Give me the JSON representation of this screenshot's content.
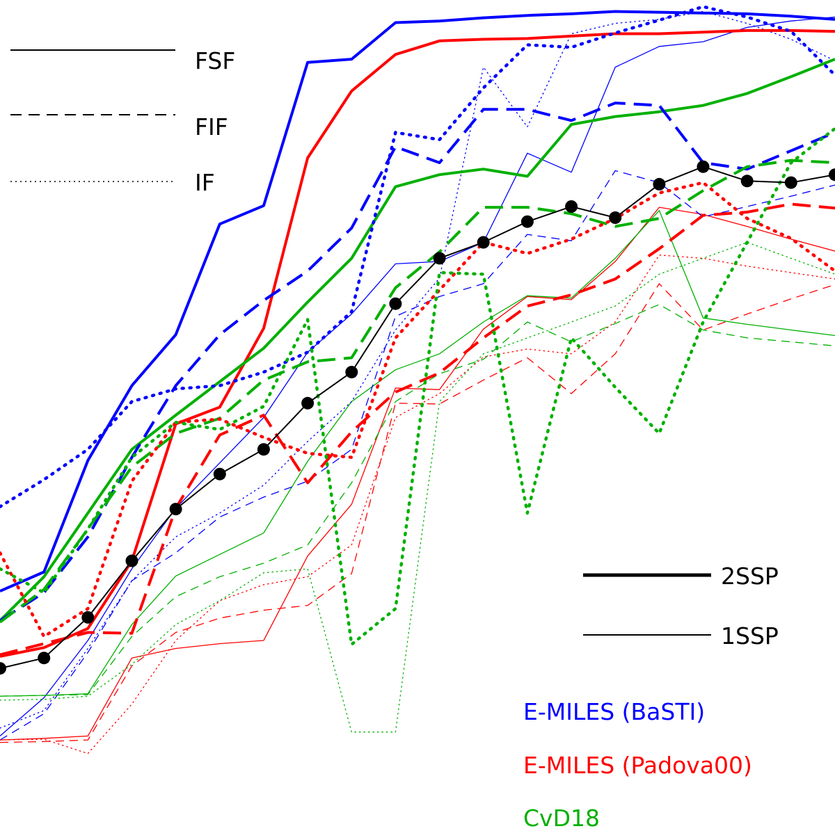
{
  "chart_data": {
    "type": "line",
    "title": "",
    "xlabel": "",
    "ylabel": "",
    "xlim": [
      0,
      19
    ],
    "ylim": [
      0,
      1
    ],
    "axes_visible": false,
    "colors": {
      "basti": "#0000ff",
      "padova": "#ff0000",
      "cvd18": "#00b000",
      "reference": "#000000"
    },
    "style_legend": [
      {
        "label": "FSF",
        "dash": "solid"
      },
      {
        "label": "FIF",
        "dash": "dashed"
      },
      {
        "label": "IF",
        "dash": "dotted"
      }
    ],
    "weight_legend": [
      {
        "label": "2SSP",
        "weight": "thick"
      },
      {
        "label": "1SSP",
        "weight": "thin"
      }
    ],
    "model_legend": [
      {
        "label": "E-MILES (BaSTI)",
        "color": "#0000ff"
      },
      {
        "label": "E-MILES (Padova00)",
        "color": "#ff0000"
      },
      {
        "label": "CvD18",
        "color": "#00b000"
      }
    ],
    "reference": {
      "name": "reference (black dots)",
      "x": [
        0,
        1,
        2,
        3,
        4,
        5,
        6,
        7,
        8,
        9,
        10,
        11,
        12,
        13,
        14,
        15,
        16,
        17,
        18,
        19
      ],
      "y": [
        0.165,
        0.178,
        0.229,
        0.3,
        0.365,
        0.409,
        0.44,
        0.498,
        0.537,
        0.623,
        0.68,
        0.7,
        0.726,
        0.745,
        0.731,
        0.773,
        0.795,
        0.777,
        0.775,
        0.785
      ]
    },
    "series": [
      {
        "name": "E-MILES (BaSTI) FSF 2SSP",
        "model": "basti",
        "style": "solid",
        "weight": "thick",
        "x": [
          0,
          1,
          2,
          3,
          4,
          5,
          6,
          7,
          8,
          9,
          10,
          11,
          12,
          13,
          14,
          15,
          16,
          17,
          18,
          19
        ],
        "y": [
          0.262,
          0.286,
          0.426,
          0.52,
          0.584,
          0.723,
          0.746,
          0.926,
          0.93,
          0.976,
          0.978,
          0.982,
          0.985,
          0.987,
          0.99,
          0.989,
          0.988,
          0.987,
          0.984,
          0.98
        ]
      },
      {
        "name": "E-MILES (Padova00) FSF 2SSP",
        "model": "red",
        "style": "solid",
        "weight": "thick",
        "x": [
          0,
          1,
          2,
          3,
          4,
          5,
          6,
          7,
          8,
          9,
          10,
          11,
          12,
          13,
          14,
          15,
          16,
          17,
          18,
          19
        ],
        "y": [
          0.18,
          0.191,
          0.215,
          0.3,
          0.472,
          0.493,
          0.592,
          0.806,
          0.89,
          0.936,
          0.953,
          0.955,
          0.956,
          0.959,
          0.962,
          0.962,
          0.964,
          0.966,
          0.966,
          0.965
        ]
      },
      {
        "name": "CvD18 FSF 2SSP",
        "model": "cvd18",
        "style": "solid",
        "weight": "thick",
        "x": [
          0,
          1,
          2,
          3,
          4,
          5,
          6,
          7,
          8,
          9,
          10,
          11,
          12,
          13,
          14,
          15,
          16,
          17,
          18,
          19
        ],
        "y": [
          0.225,
          0.28,
          0.36,
          0.44,
          0.483,
          0.525,
          0.567,
          0.625,
          0.68,
          0.77,
          0.785,
          0.792,
          0.783,
          0.848,
          0.858,
          0.864,
          0.872,
          0.887,
          0.908,
          0.93
        ]
      },
      {
        "name": "E-MILES (BaSTI) FIF 2SSP",
        "model": "basti",
        "style": "dashed",
        "weight": "thick",
        "x": [
          0,
          1,
          2,
          3,
          4,
          5,
          6,
          7,
          8,
          9,
          10,
          11,
          12,
          13,
          14,
          15,
          16,
          17,
          18,
          19
        ],
        "y": [
          0.225,
          0.26,
          0.33,
          0.43,
          0.52,
          0.584,
          0.627,
          0.664,
          0.718,
          0.82,
          0.8,
          0.867,
          0.867,
          0.853,
          0.875,
          0.872,
          0.8,
          0.792,
          0.815,
          0.838
        ]
      },
      {
        "name": "E-MILES (Padova00) FIF 2SSP",
        "model": "red",
        "style": "dashed",
        "weight": "thick",
        "x": [
          0,
          1,
          2,
          3,
          4,
          5,
          6,
          7,
          8,
          9,
          10,
          11,
          12,
          13,
          14,
          15,
          16,
          17,
          18,
          19
        ],
        "y": [
          0.182,
          0.196,
          0.21,
          0.209,
          0.366,
          0.458,
          0.483,
          0.398,
          0.462,
          0.512,
          0.536,
          0.58,
          0.62,
          0.634,
          0.654,
          0.692,
          0.734,
          0.738,
          0.748,
          0.743
        ]
      },
      {
        "name": "CvD18 FIF 2SSP",
        "model": "cvd18",
        "style": "dashed",
        "weight": "thick",
        "x": [
          0,
          1,
          2,
          3,
          4,
          5,
          6,
          7,
          8,
          9,
          10,
          11,
          12,
          13,
          14,
          15,
          16,
          17,
          18,
          19
        ],
        "y": [
          0.223,
          0.264,
          0.34,
          0.418,
          0.46,
          0.479,
          0.527,
          0.55,
          0.555,
          0.643,
          0.688,
          0.744,
          0.744,
          0.736,
          0.72,
          0.73,
          0.765,
          0.795,
          0.803,
          0.8
        ]
      },
      {
        "name": "E-MILES (BaSTI) IF 2SSP",
        "model": "basti",
        "style": "dotted",
        "weight": "thick",
        "x": [
          0,
          1,
          2,
          3,
          4,
          5,
          6,
          7,
          8,
          9,
          10,
          11,
          12,
          13,
          14,
          15,
          16,
          17,
          18,
          19
        ],
        "y": [
          0.368,
          0.402,
          0.44,
          0.5,
          0.516,
          0.52,
          0.537,
          0.562,
          0.613,
          0.838,
          0.829,
          0.894,
          0.948,
          0.945,
          0.963,
          0.979,
          0.996,
          0.983,
          0.965,
          0.91
        ]
      },
      {
        "name": "E-MILES (Padova00) IF 2SSP",
        "model": "red",
        "style": "dotted",
        "weight": "thick",
        "x": [
          0,
          1,
          2,
          3,
          4,
          5,
          6,
          7,
          8,
          9,
          10,
          11,
          12,
          13,
          14,
          15,
          16,
          17,
          18,
          19
        ],
        "y": [
          0.31,
          0.205,
          0.24,
          0.4,
          0.474,
          0.478,
          0.455,
          0.435,
          0.43,
          0.58,
          0.64,
          0.7,
          0.686,
          0.704,
          0.73,
          0.762,
          0.775,
          0.73,
          0.705,
          0.664
        ]
      },
      {
        "name": "CvD18 IF 2SSP",
        "model": "cvd18",
        "style": "dotted",
        "weight": "thick",
        "x": [
          0,
          1,
          2,
          3,
          4,
          5,
          6,
          7,
          8,
          9,
          10,
          11,
          12,
          13,
          14,
          15,
          16,
          17,
          18,
          19
        ],
        "y": [
          0.29,
          0.26,
          0.34,
          0.43,
          0.474,
          0.465,
          0.494,
          0.603,
          0.195,
          0.24,
          0.662,
          0.66,
          0.36,
          0.58,
          0.518,
          0.46,
          0.6,
          0.7,
          0.8,
          0.843
        ]
      },
      {
        "name": "E-MILES (BaSTI) FSF 1SSP",
        "model": "basti",
        "style": "solid",
        "weight": "thin",
        "x": [
          0,
          1,
          2,
          3,
          4,
          5,
          6,
          7,
          8,
          9,
          10,
          11,
          12,
          13,
          14,
          15,
          16,
          17,
          18,
          19
        ],
        "y": [
          0.08,
          0.128,
          0.2,
          0.29,
          0.366,
          0.423,
          0.48,
          0.562,
          0.61,
          0.673,
          0.676,
          0.7,
          0.812,
          0.788,
          0.92,
          0.946,
          0.952,
          0.97,
          0.978,
          0.983
        ]
      },
      {
        "name": "E-MILES (Padova00) FSF 1SSP",
        "model": "red",
        "style": "solid",
        "weight": "thin",
        "x": [
          0,
          1,
          2,
          3,
          4,
          5,
          6,
          7,
          8,
          9,
          10,
          11,
          12,
          13,
          14,
          15,
          16,
          17,
          18,
          19
        ],
        "y": [
          0.075,
          0.077,
          0.08,
          0.178,
          0.19,
          0.196,
          0.2,
          0.306,
          0.371,
          0.517,
          0.515,
          0.591,
          0.632,
          0.628,
          0.676,
          0.744,
          0.735,
          0.72,
          0.704,
          0.689
        ]
      },
      {
        "name": "CvD18 FSF 1SSP",
        "model": "cvd18",
        "style": "solid",
        "weight": "thin",
        "x": [
          0,
          1,
          2,
          3,
          4,
          5,
          6,
          7,
          8,
          9,
          10,
          11,
          12,
          13,
          14,
          15,
          16,
          17,
          18,
          19
        ],
        "y": [
          0.13,
          0.131,
          0.133,
          0.22,
          0.281,
          0.308,
          0.335,
          0.425,
          0.5,
          0.54,
          0.56,
          0.6,
          0.633,
          0.63,
          0.68,
          0.74,
          0.605,
          0.597,
          0.59,
          0.583
        ]
      },
      {
        "name": "E-MILES (BaSTI) FIF 1SSP",
        "model": "basti",
        "style": "dashed",
        "weight": "thin",
        "x": [
          0,
          1,
          2,
          3,
          4,
          5,
          6,
          7,
          8,
          9,
          10,
          11,
          12,
          13,
          14,
          15,
          16,
          17,
          18,
          19
        ],
        "y": [
          0.075,
          0.108,
          0.185,
          0.275,
          0.31,
          0.355,
          0.38,
          0.4,
          0.44,
          0.607,
          0.632,
          0.648,
          0.71,
          0.702,
          0.79,
          0.775,
          0.732,
          0.745,
          0.758,
          0.772
        ]
      },
      {
        "name": "E-MILES (Padova00) FIF 1SSP",
        "model": "red",
        "style": "dashed",
        "weight": "thin",
        "x": [
          0,
          1,
          2,
          3,
          4,
          5,
          6,
          7,
          8,
          9,
          10,
          11,
          12,
          13,
          14,
          15,
          16,
          17,
          18,
          19
        ],
        "y": [
          0.072,
          0.073,
          0.075,
          0.168,
          0.21,
          0.228,
          0.238,
          0.244,
          0.284,
          0.498,
          0.497,
          0.527,
          0.555,
          0.51,
          0.56,
          0.648,
          0.59,
          0.61,
          0.629,
          0.647
        ]
      },
      {
        "name": "CvD18 FIF 1SSP",
        "model": "cvd18",
        "style": "dashed",
        "weight": "thin",
        "x": [
          0,
          1,
          2,
          3,
          4,
          5,
          6,
          7,
          8,
          9,
          10,
          11,
          12,
          13,
          14,
          15,
          16,
          17,
          18,
          19
        ],
        "y": [
          0.13,
          0.131,
          0.132,
          0.205,
          0.255,
          0.28,
          0.297,
          0.32,
          0.398,
          0.5,
          0.535,
          0.553,
          0.6,
          0.575,
          0.598,
          0.622,
          0.59,
          0.58,
          0.575,
          0.57
        ]
      },
      {
        "name": "E-MILES (BaSTI) IF 1SSP",
        "model": "basti",
        "style": "dotted",
        "weight": "thin",
        "x": [
          0,
          1,
          2,
          3,
          4,
          5,
          6,
          7,
          8,
          9,
          10,
          11,
          12,
          13,
          14,
          15,
          16,
          17,
          18,
          19
        ],
        "y": [
          0.09,
          0.112,
          0.19,
          0.275,
          0.33,
          0.36,
          0.395,
          0.45,
          0.5,
          0.59,
          0.655,
          0.92,
          0.845,
          0.962,
          0.975,
          0.98,
          0.99,
          0.975,
          0.955,
          0.928
        ]
      },
      {
        "name": "E-MILES (Padova00) IF 1SSP",
        "model": "red",
        "style": "dotted",
        "weight": "thin",
        "x": [
          0,
          1,
          2,
          3,
          4,
          5,
          6,
          7,
          8,
          9,
          10,
          11,
          12,
          13,
          14,
          15,
          16,
          17,
          18,
          19
        ],
        "y": [
          0.075,
          0.076,
          0.058,
          0.12,
          0.2,
          0.25,
          0.27,
          0.28,
          0.32,
          0.48,
          0.51,
          0.556,
          0.566,
          0.56,
          0.6,
          0.684,
          0.68,
          0.67,
          0.662,
          0.654
        ]
      },
      {
        "name": "CvD18 IF 1SSP",
        "model": "cvd18",
        "style": "dotted",
        "weight": "thin",
        "x": [
          0,
          1,
          2,
          3,
          4,
          5,
          6,
          7,
          8,
          9,
          10,
          11,
          12,
          13,
          14,
          15,
          16,
          17,
          18,
          19
        ],
        "y": [
          0.125,
          0.126,
          0.13,
          0.17,
          0.22,
          0.25,
          0.285,
          0.29,
          0.085,
          0.085,
          0.5,
          0.56,
          0.58,
          0.6,
          0.62,
          0.66,
          0.68,
          0.7,
          0.68,
          0.66
        ]
      }
    ]
  }
}
